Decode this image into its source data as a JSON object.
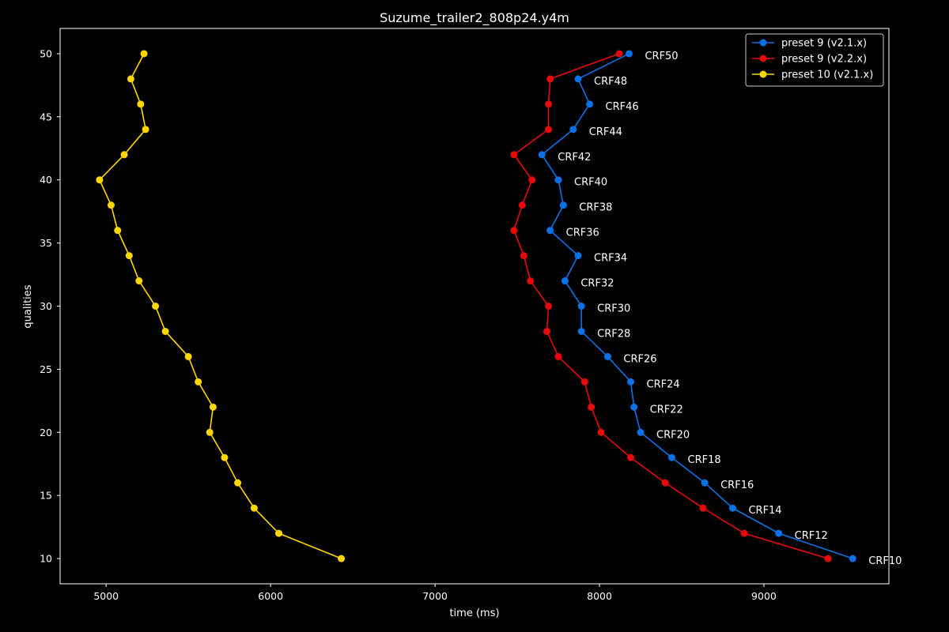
{
  "chart_data": {
    "type": "line",
    "title": "Suzume_trailer2_808p24.y4m",
    "xlabel": "time (ms)",
    "ylabel": "qualities",
    "xlim": [
      4720,
      9760
    ],
    "ylim": [
      8,
      52
    ],
    "xticks": [
      5000,
      6000,
      7000,
      8000,
      9000
    ],
    "yticks": [
      10,
      15,
      20,
      25,
      30,
      35,
      40,
      45,
      50
    ],
    "grid": false,
    "legend_position": "upper right",
    "point_labels": [
      "CRF50",
      "CRF48",
      "CRF46",
      "CRF44",
      "CRF42",
      "CRF40",
      "CRF38",
      "CRF36",
      "CRF34",
      "CRF32",
      "CRF30",
      "CRF28",
      "CRF26",
      "CRF24",
      "CRF22",
      "CRF20",
      "CRF18",
      "CRF16",
      "CRF14",
      "CRF12",
      "CRF10"
    ],
    "y": [
      50,
      48,
      46,
      44,
      42,
      40,
      38,
      36,
      34,
      32,
      30,
      28,
      26,
      24,
      22,
      20,
      18,
      16,
      14,
      12,
      10
    ],
    "series": [
      {
        "name": "preset 9 (v2.1.x)",
        "color": "#0a72e6",
        "x": [
          8180,
          7870,
          7940,
          7840,
          7650,
          7750,
          7780,
          7700,
          7870,
          7790,
          7890,
          7890,
          8050,
          8190,
          8210,
          8250,
          8440,
          8640,
          8810,
          9090,
          9540
        ]
      },
      {
        "name": "preset 9 (v2.2.x)",
        "color": "#e60a0a",
        "x": [
          8120,
          7700,
          7690,
          7690,
          7480,
          7590,
          7530,
          7480,
          7540,
          7580,
          7690,
          7680,
          7750,
          7910,
          7950,
          8010,
          8190,
          8400,
          8630,
          8880,
          9390
        ]
      },
      {
        "name": "preset 10 (v2.1.x)",
        "color": "#ffd700",
        "x": [
          5230,
          5150,
          5210,
          5240,
          5110,
          4960,
          5030,
          5070,
          5140,
          5200,
          5300,
          5360,
          5500,
          5560,
          5650,
          5630,
          5720,
          5800,
          5900,
          6050,
          6430
        ]
      }
    ]
  }
}
